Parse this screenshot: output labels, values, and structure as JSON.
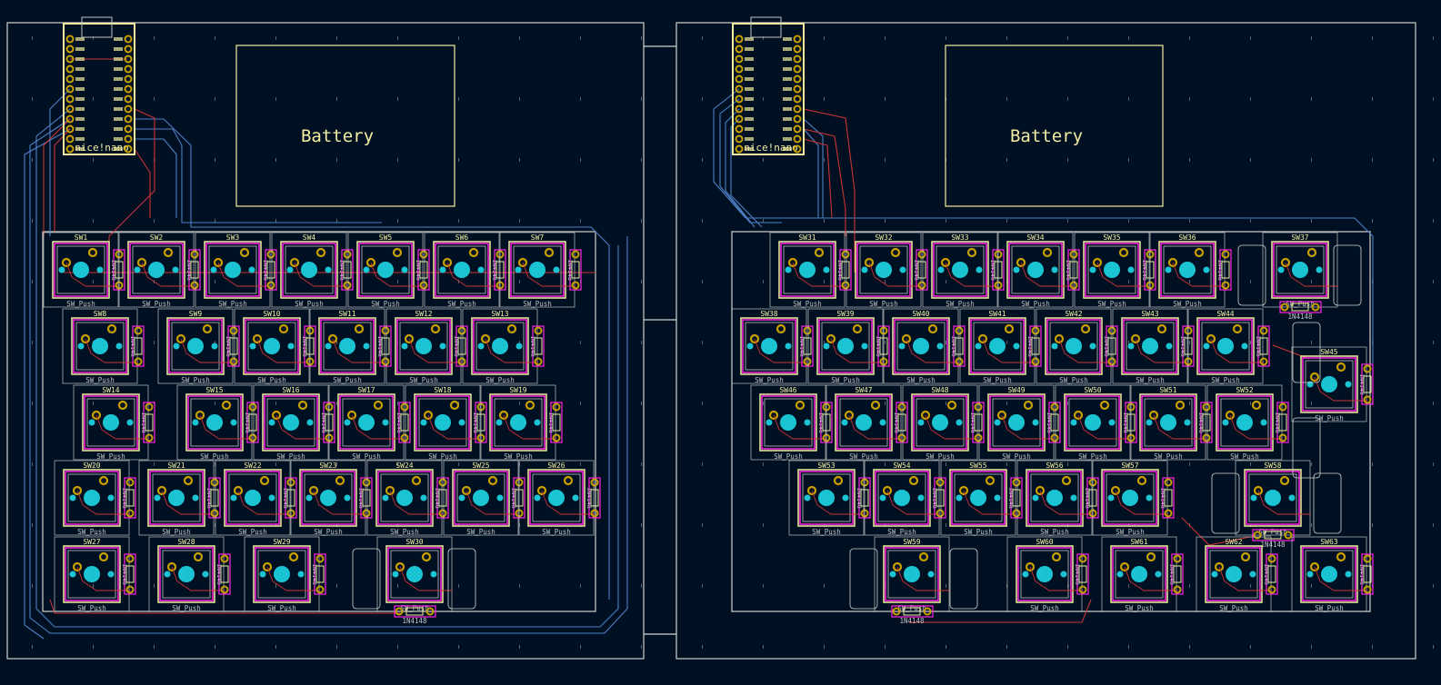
{
  "colors": {
    "background": "#001023",
    "edge_cuts": "#d0d2cd",
    "silkscreen": "#f2eda1",
    "courtyard": "#ff26e2",
    "pad": "#c8a000",
    "npth_hole": "#1ac4d2",
    "front_copper": "#c83434",
    "back_copper": "#4d7fc4"
  },
  "left_board": {
    "controller_label": "nice!nano",
    "battery_label": "Battery",
    "switches": [
      "SW1",
      "SW2",
      "SW3",
      "SW4",
      "SW5",
      "SW6",
      "SW7",
      "SW8",
      "SW9",
      "SW10",
      "SW11",
      "SW12",
      "SW13",
      "SW14",
      "SW15",
      "SW16",
      "SW17",
      "SW18",
      "SW19",
      "SW20",
      "SW21",
      "SW22",
      "SW23",
      "SW24",
      "SW25",
      "SW26",
      "SW27",
      "SW28",
      "SW29",
      "SW30"
    ]
  },
  "right_board": {
    "controller_label": "nice!nano",
    "battery_label": "Battery",
    "switches": [
      "SW31",
      "SW32",
      "SW33",
      "SW34",
      "SW35",
      "SW36",
      "SW37",
      "SW38",
      "SW39",
      "SW40",
      "SW41",
      "SW42",
      "SW43",
      "SW44",
      "SW45",
      "SW46",
      "SW47",
      "SW48",
      "SW49",
      "SW50",
      "SW51",
      "SW52",
      "SW53",
      "SW54",
      "SW55",
      "SW56",
      "SW57",
      "SW58",
      "SW59",
      "SW60",
      "SW61",
      "SW62",
      "SW63"
    ]
  },
  "switch_value": "SW_Push",
  "diode_value": "1N4148"
}
